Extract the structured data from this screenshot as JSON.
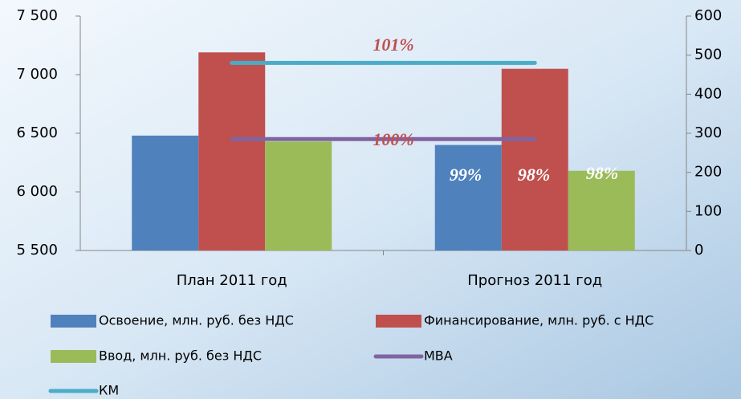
{
  "chart_data": {
    "type": "bar",
    "categories": [
      "План 2011 год",
      "Прогноз 2011 год"
    ],
    "series": [
      {
        "name": "Освоение, млн. руб. без НДС",
        "color": "#4f81bd",
        "values": [
          6480,
          6400
        ]
      },
      {
        "name": "Финансирование, млн. руб. с НДС",
        "color": "#c0504d",
        "values": [
          7190,
          7050
        ]
      },
      {
        "name": "Ввод, млн. руб. без НДС",
        "color": "#9bbb59",
        "values": [
          6430,
          6180
        ]
      },
      {
        "name": "МВА",
        "color": "#8064a2",
        "type": "line",
        "axis": "y2",
        "values": [
          285,
          285
        ]
      },
      {
        "name": "КМ",
        "color": "#4bacc6",
        "type": "line",
        "axis": "y2",
        "values": [
          480,
          480
        ]
      }
    ],
    "ylim": [
      5500,
      7500
    ],
    "yticks": [
      {
        "value": 5500,
        "label": "5 500"
      },
      {
        "value": 6000,
        "label": "6 000"
      },
      {
        "value": 6500,
        "label": "6 500"
      },
      {
        "value": 7000,
        "label": "7 000"
      },
      {
        "value": 7500,
        "label": "7 500"
      }
    ],
    "y2lim": [
      0,
      600
    ],
    "y2ticks": [
      0,
      100,
      200,
      300,
      400,
      500,
      600
    ],
    "annotations": [
      "101%",
      "100%",
      "99%",
      "98%",
      "98%"
    ]
  }
}
